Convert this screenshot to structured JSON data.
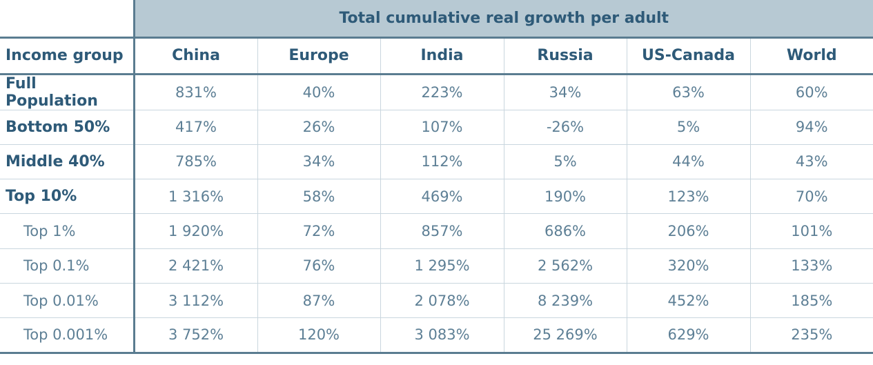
{
  "chart_data": {
    "type": "table",
    "title": "Total cumulative real growth per adult",
    "row_header_label": "Income group",
    "columns": [
      "China",
      "Europe",
      "India",
      "Russia",
      "US-Canada",
      "World"
    ],
    "rows": [
      {
        "label": "Full Population",
        "level": "main",
        "values": [
          "831%",
          "40%",
          "223%",
          "34%",
          "63%",
          "60%"
        ]
      },
      {
        "label": "Bottom 50%",
        "level": "main",
        "values": [
          "417%",
          "26%",
          "107%",
          "-26%",
          "5%",
          "94%"
        ]
      },
      {
        "label": "Middle 40%",
        "level": "main",
        "values": [
          "785%",
          "34%",
          "112%",
          "5%",
          "44%",
          "43%"
        ]
      },
      {
        "label": "Top 10%",
        "level": "main",
        "values": [
          "1 316%",
          "58%",
          "469%",
          "190%",
          "123%",
          "70%"
        ]
      },
      {
        "label": "Top 1%",
        "level": "sub",
        "values": [
          "1 920%",
          "72%",
          "857%",
          "686%",
          "206%",
          "101%"
        ]
      },
      {
        "label": "Top 0.1%",
        "level": "sub",
        "values": [
          "2 421%",
          "76%",
          "1 295%",
          "2 562%",
          "320%",
          "133%"
        ]
      },
      {
        "label": "Top 0.01%",
        "level": "sub",
        "values": [
          "3 112%",
          "87%",
          "2 078%",
          "8 239%",
          "452%",
          "185%"
        ]
      },
      {
        "label": "Top 0.001%",
        "level": "sub",
        "values": [
          "3 752%",
          "120%",
          "3 083%",
          "25 269%",
          "629%",
          "235%"
        ]
      }
    ]
  }
}
